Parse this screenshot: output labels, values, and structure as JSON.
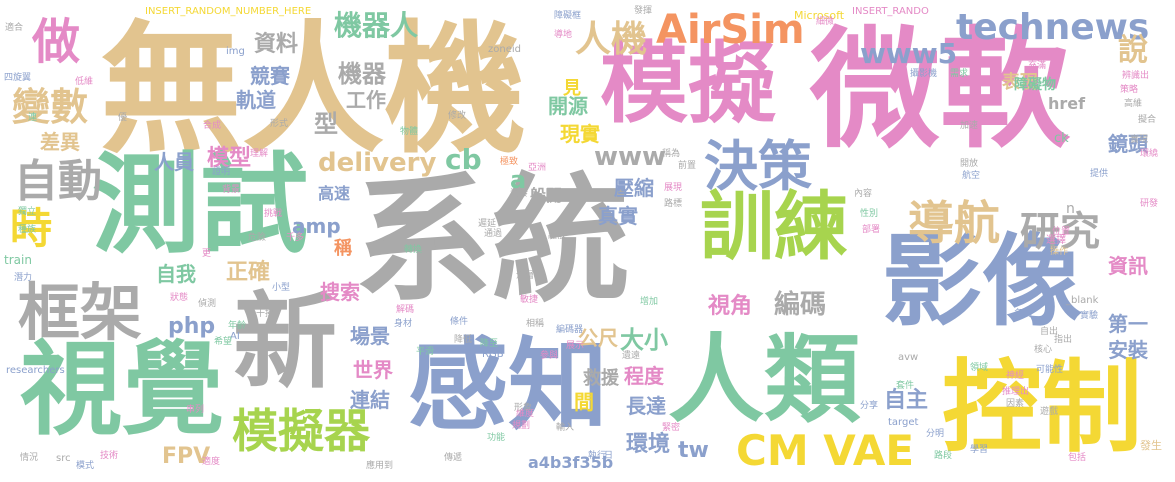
{
  "palette": {
    "tan": "#e2c48f",
    "pink": "#e48ac6",
    "gray": "#aaaaaa",
    "green": "#7fc8a2",
    "blue": "#8ba0cc",
    "yellow": "#f4d834",
    "lime": "#a7d44e",
    "orange": "#f49461"
  },
  "words": [
    {
      "text": "無人機",
      "color": "tan"
    },
    {
      "text": "微軟",
      "color": "pink"
    },
    {
      "text": "系統",
      "color": "gray"
    },
    {
      "text": "模擬",
      "color": "pink"
    },
    {
      "text": "測試",
      "color": "green"
    },
    {
      "text": "影像",
      "color": "blue"
    },
    {
      "text": "感知",
      "color": "blue"
    },
    {
      "text": "人類",
      "color": "green"
    },
    {
      "text": "控制",
      "color": "yellow"
    },
    {
      "text": "視覺",
      "color": "green"
    },
    {
      "text": "新",
      "color": "gray"
    },
    {
      "text": "訓練",
      "color": "lime"
    },
    {
      "text": "框架",
      "color": "gray"
    },
    {
      "text": "模擬器",
      "color": "lime"
    },
    {
      "text": "AirSim",
      "color": "orange"
    },
    {
      "text": "technews",
      "color": "blue"
    },
    {
      "text": "決策",
      "color": "blue"
    },
    {
      "text": "導航",
      "color": "tan"
    },
    {
      "text": "研究",
      "color": "gray"
    },
    {
      "text": "CM VAE",
      "color": "yellow"
    },
    {
      "text": "做",
      "color": "pink"
    },
    {
      "text": "變數",
      "color": "tan"
    },
    {
      "text": "自動",
      "color": "gray"
    },
    {
      "text": "時",
      "color": "yellow"
    },
    {
      "text": "人機",
      "color": "tan"
    },
    {
      "text": "www5",
      "color": "blue"
    },
    {
      "text": "說",
      "color": "tan"
    },
    {
      "text": "機器人",
      "color": "green"
    },
    {
      "text": "資料",
      "color": "gray"
    },
    {
      "text": "機器",
      "color": "gray"
    },
    {
      "text": "競賽",
      "color": "blue"
    },
    {
      "text": "軌道",
      "color": "blue"
    },
    {
      "text": "工作",
      "color": "gray"
    },
    {
      "text": "型",
      "color": "gray"
    },
    {
      "text": "差異",
      "color": "tan"
    },
    {
      "text": "人員",
      "color": "blue"
    },
    {
      "text": "模型",
      "color": "pink"
    },
    {
      "text": "delivery",
      "color": "tan"
    },
    {
      "text": "cb",
      "color": "green"
    },
    {
      "text": "www",
      "color": "gray"
    },
    {
      "text": "a",
      "color": "green"
    },
    {
      "text": "amp",
      "color": "blue"
    },
    {
      "text": "正確",
      "color": "tan"
    },
    {
      "text": "php",
      "color": "blue"
    },
    {
      "text": "自我",
      "color": "green"
    },
    {
      "text": "搜索",
      "color": "pink"
    },
    {
      "text": "場景",
      "color": "blue"
    },
    {
      "text": "世界",
      "color": "pink"
    },
    {
      "text": "連結",
      "color": "blue"
    },
    {
      "text": "大小",
      "color": "green"
    },
    {
      "text": "程度",
      "color": "pink"
    },
    {
      "text": "長達",
      "color": "blue"
    },
    {
      "text": "救援",
      "color": "gray"
    },
    {
      "text": "環境",
      "color": "blue"
    },
    {
      "text": "tw",
      "color": "blue"
    },
    {
      "text": "FPV",
      "color": "tan"
    },
    {
      "text": "a4b3f35b",
      "color": "blue"
    },
    {
      "text": "視角",
      "color": "pink"
    },
    {
      "text": "編碼",
      "color": "gray"
    },
    {
      "text": "表現",
      "color": "tan"
    },
    {
      "text": "鏡頭",
      "color": "blue"
    },
    {
      "text": "資訊",
      "color": "pink"
    },
    {
      "text": "第一",
      "color": "blue"
    },
    {
      "text": "安裝",
      "color": "blue"
    },
    {
      "text": "自主",
      "color": "blue"
    },
    {
      "text": "href",
      "color": "gray"
    },
    {
      "text": "開源",
      "color": "green"
    },
    {
      "text": "現實",
      "color": "yellow"
    },
    {
      "text": "壓縮",
      "color": "blue"
    },
    {
      "text": "真實",
      "color": "blue"
    },
    {
      "text": "公尺",
      "color": "tan"
    },
    {
      "text": "障礙物",
      "color": "green"
    },
    {
      "text": "見",
      "color": "yellow"
    },
    {
      "text": "稱",
      "color": "orange"
    },
    {
      "text": "間",
      "color": "yellow"
    },
    {
      "text": "躲開",
      "color": "gray"
    },
    {
      "text": "INSERT_RANDOM_NUMBER_HERE",
      "color": "yellow"
    },
    {
      "text": "INSERT_RANDO",
      "color": "pink"
    },
    {
      "text": "Microsoft",
      "color": "yellow"
    },
    {
      "text": "zoneid",
      "color": "gray"
    },
    {
      "text": "img",
      "color": "blue"
    },
    {
      "text": "train",
      "color": "green"
    },
    {
      "text": "researchers",
      "color": "blue"
    },
    {
      "text": "src",
      "color": "gray"
    },
    {
      "text": "_blank",
      "color": "gray"
    },
    {
      "text": "target",
      "color": "blue"
    },
    {
      "text": "avw",
      "color": "gray"
    },
    {
      "text": "ck",
      "color": "green"
    },
    {
      "text": "n",
      "color": "gray"
    },
    {
      "text": "RGB",
      "color": "blue"
    },
    {
      "text": "AI",
      "color": "blue"
    },
    {
      "text": "發揮",
      "color": "gray"
    },
    {
      "text": "障礙框",
      "color": "blue"
    },
    {
      "text": "導地",
      "color": "pink"
    },
    {
      "text": "細微",
      "color": "pink"
    },
    {
      "text": "適合",
      "color": "gray"
    },
    {
      "text": "四旋翼",
      "color": "blue"
    },
    {
      "text": "低維",
      "color": "pink"
    },
    {
      "text": "連",
      "color": "green"
    },
    {
      "text": "合成",
      "color": "pink"
    },
    {
      "text": "形式",
      "color": "gray"
    },
    {
      "text": "物體",
      "color": "green"
    },
    {
      "text": "理解",
      "color": "pink"
    },
    {
      "text": "證明",
      "color": "blue"
    },
    {
      "text": "背景",
      "color": "pink"
    },
    {
      "text": "獨立",
      "color": "green"
    },
    {
      "text": "種族",
      "color": "green"
    },
    {
      "text": "潛力",
      "color": "blue"
    },
    {
      "text": "狀態",
      "color": "pink"
    },
    {
      "text": "干擾",
      "color": "gray"
    },
    {
      "text": "希望",
      "color": "green"
    },
    {
      "text": "串列",
      "color": "pink"
    },
    {
      "text": "情況",
      "color": "gray"
    },
    {
      "text": "模式",
      "color": "blue"
    },
    {
      "text": "技術",
      "color": "pink"
    },
    {
      "text": "適度",
      "color": "pink"
    },
    {
      "text": "傳遞",
      "color": "gray"
    },
    {
      "text": "應用到",
      "color": "gray"
    },
    {
      "text": "功能",
      "color": "green"
    },
    {
      "text": "輸入",
      "color": "gray"
    },
    {
      "text": "執行",
      "color": "blue"
    },
    {
      "text": "日",
      "color": "blue"
    },
    {
      "text": "分享",
      "color": "blue"
    },
    {
      "text": "學習",
      "color": "blue"
    },
    {
      "text": "包括",
      "color": "pink"
    },
    {
      "text": "發生",
      "color": "tan"
    },
    {
      "text": "推理出",
      "color": "pink"
    },
    {
      "text": "因素",
      "color": "gray"
    },
    {
      "text": "名為",
      "color": "blue"
    },
    {
      "text": "實驗",
      "color": "blue"
    },
    {
      "text": "核心",
      "color": "gray"
    },
    {
      "text": "可能性",
      "color": "blue"
    },
    {
      "text": "自出",
      "color": "gray"
    },
    {
      "text": "套件",
      "color": "green"
    },
    {
      "text": "領域",
      "color": "green"
    },
    {
      "text": "路段",
      "color": "green"
    },
    {
      "text": "分明",
      "color": "blue"
    },
    {
      "text": "辨識出",
      "color": "pink"
    },
    {
      "text": "策略",
      "color": "pink"
    },
    {
      "text": "高維",
      "color": "gray"
    },
    {
      "text": "擬合",
      "color": "gray"
    },
    {
      "text": "需求",
      "color": "green"
    },
    {
      "text": "充滿",
      "color": "pink"
    },
    {
      "text": "攝影機",
      "color": "blue"
    },
    {
      "text": "開放",
      "color": "gray"
    },
    {
      "text": "航空",
      "color": "blue"
    },
    {
      "text": "提供",
      "color": "blue"
    },
    {
      "text": "操作",
      "color": "tan"
    },
    {
      "text": "位置",
      "color": "pink"
    },
    {
      "text": "部署",
      "color": "pink"
    },
    {
      "text": "性別",
      "color": "green"
    },
    {
      "text": "內容",
      "color": "gray"
    },
    {
      "text": "路標",
      "color": "gray"
    },
    {
      "text": "展現",
      "color": "pink"
    },
    {
      "text": "前置",
      "color": "gray"
    },
    {
      "text": "稱為",
      "color": "gray"
    },
    {
      "text": "極致",
      "color": "orange"
    },
    {
      "text": "資發",
      "color": "gray"
    },
    {
      "text": "挑戰",
      "color": "pink"
    },
    {
      "text": "危險",
      "color": "gray"
    },
    {
      "text": "千多",
      "color": "pink"
    },
    {
      "text": "小型",
      "color": "blue"
    },
    {
      "text": "偵測",
      "color": "gray"
    },
    {
      "text": "年齡",
      "color": "green"
    },
    {
      "text": "解碼",
      "color": "pink"
    },
    {
      "text": "身材",
      "color": "blue"
    },
    {
      "text": "條件",
      "color": "blue"
    },
    {
      "text": "降低",
      "color": "gray"
    },
    {
      "text": "降至",
      "color": "green"
    },
    {
      "text": "平滑",
      "color": "green"
    },
    {
      "text": "通過",
      "color": "gray"
    },
    {
      "text": "深層",
      "color": "gray"
    },
    {
      "text": "敏捷",
      "color": "pink"
    },
    {
      "text": "離散",
      "color": "gray"
    },
    {
      "text": "相稱",
      "color": "gray"
    },
    {
      "text": "編碼器",
      "color": "blue"
    },
    {
      "text": "緊密",
      "color": "pink"
    },
    {
      "text": "維度",
      "color": "pink"
    },
    {
      "text": "遺遠",
      "color": "gray"
    },
    {
      "text": "參與",
      "color": "pink"
    },
    {
      "text": "展示",
      "color": "pink"
    },
    {
      "text": "規劃",
      "color": "pink"
    },
    {
      "text": "形象",
      "color": "gray"
    },
    {
      "text": "修改",
      "color": "gray"
    },
    {
      "text": "實現",
      "color": "gray"
    },
    {
      "text": "遊戲",
      "color": "gray"
    },
    {
      "text": "轉換",
      "color": "green"
    },
    {
      "text": "加速",
      "color": "gray"
    },
    {
      "text": "增加",
      "color": "green"
    },
    {
      "text": "環繞",
      "color": "pink"
    },
    {
      "text": "研發",
      "color": "pink"
    },
    {
      "text": "神經",
      "color": "pink"
    },
    {
      "text": "亞洲",
      "color": "pink"
    },
    {
      "text": "指出",
      "color": "gray"
    },
    {
      "text": "遲延",
      "color": "gray"
    },
    {
      "text": "高速",
      "color": "blue"
    },
    {
      "text": "細",
      "color": "gray"
    },
    {
      "text": "側",
      "color": "gray"
    },
    {
      "text": "更",
      "color": "pink"
    },
    {
      "text": "選擇",
      "color": "pink"
    },
    {
      "text": "優",
      "color": "gray"
    },
    {
      "text": "視",
      "color": "gray"
    },
    {
      "text": "高",
      "color": "gray"
    },
    {
      "text": "行",
      "color": "yellow"
    },
    {
      "text": "S",
      "color": "gray"
    }
  ]
}
